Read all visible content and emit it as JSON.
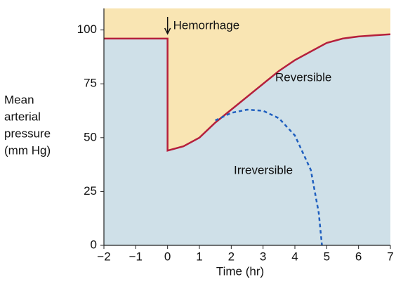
{
  "chart_data": {
    "type": "line",
    "ylabel": [
      "Mean",
      "arterial",
      "pressure",
      "(mm Hg)"
    ],
    "xlabel": "Time (hr)",
    "annotation": "Hemorrhage",
    "xlim": [
      -2,
      7
    ],
    "ylim": [
      0,
      110
    ],
    "xticks": [
      {
        "value": -2,
        "label": "−2"
      },
      {
        "value": -1,
        "label": "−1"
      },
      0,
      1,
      2,
      3,
      4,
      5,
      6,
      7
    ],
    "yticks": [
      0,
      25,
      50,
      75,
      100
    ],
    "above_color": "#f9e5b3",
    "below_color": "#cfe0e8",
    "series": [
      {
        "name": "Reversible",
        "color": "#b5203c",
        "dashed": false,
        "x": [
          -2,
          0,
          0,
          0.5,
          1,
          1.5,
          2,
          2.5,
          3,
          3.5,
          4,
          4.5,
          5,
          5.5,
          6,
          6.5,
          7
        ],
        "values": [
          96,
          96,
          44,
          46,
          50,
          57,
          63,
          69,
          75,
          81,
          86,
          90,
          94,
          96,
          97,
          97.5,
          98
        ]
      },
      {
        "name": "Irreversible",
        "color": "#1f5fbf",
        "dashed": true,
        "x": [
          1.5,
          2,
          2.5,
          3,
          3.5,
          4,
          4.5,
          4.75,
          4.85
        ],
        "values": [
          58,
          61.5,
          63,
          62.5,
          59,
          51,
          35,
          15,
          0
        ]
      }
    ]
  }
}
